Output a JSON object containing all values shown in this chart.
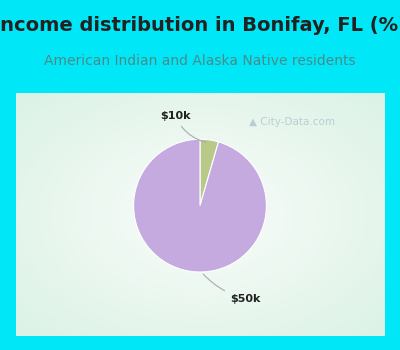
{
  "title": "Income distribution in Bonifay, FL (%)",
  "subtitle": "American Indian and Alaska Native residents",
  "slices": [
    4.5,
    95.5
  ],
  "labels": [
    "$10k",
    "$50k"
  ],
  "colors": [
    "#b8c98a",
    "#c4aade"
  ],
  "startangle": 90,
  "title_fontsize": 14,
  "subtitle_fontsize": 10,
  "title_color": "#222222",
  "subtitle_color": "#4a8a8a",
  "header_bg": "#00e8f8",
  "chart_panel_bg": "#e8f5ee",
  "watermark": "City-Data.com",
  "border_color": "#00e8f8",
  "border_width": 8
}
